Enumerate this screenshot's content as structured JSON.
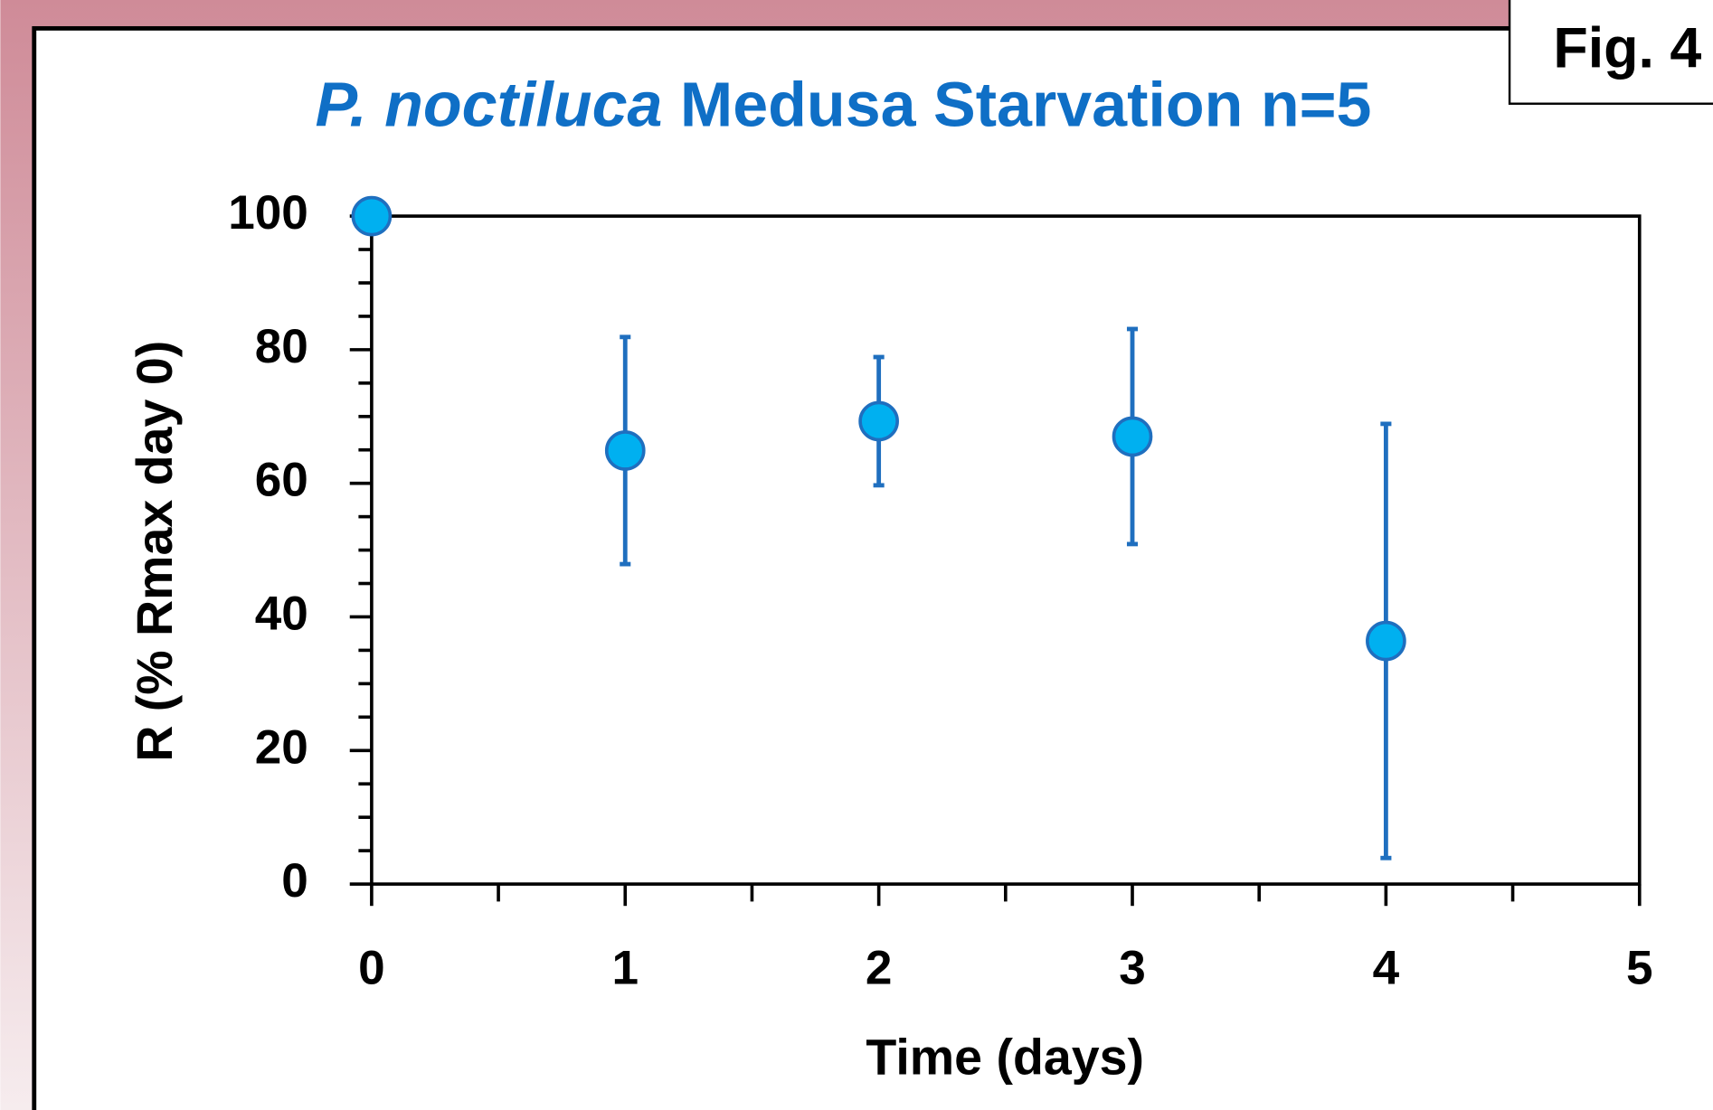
{
  "figure_label": "Fig. 4",
  "chart_data": {
    "type": "scatter",
    "title_species": "P. noctiluca",
    "title": "Medusa Starvation n=5",
    "x_label": "Time (days)",
    "y_label": "R (% Rmax day 0)",
    "x": [
      0,
      1,
      2,
      3,
      4
    ],
    "values": [
      100,
      64.9,
      69.3,
      67.0,
      36.4
    ],
    "errors": [
      0,
      17,
      9.6,
      16.1,
      32.5
    ],
    "color": "#00b0f0",
    "error_color": "#1f6fbf",
    "xlim": [
      0,
      5
    ],
    "xticks": [
      0,
      1,
      2,
      3,
      4,
      5
    ],
    "ylim": [
      0,
      100
    ],
    "yticks": [
      0,
      20,
      40,
      60,
      80,
      100
    ],
    "grid": false
  }
}
